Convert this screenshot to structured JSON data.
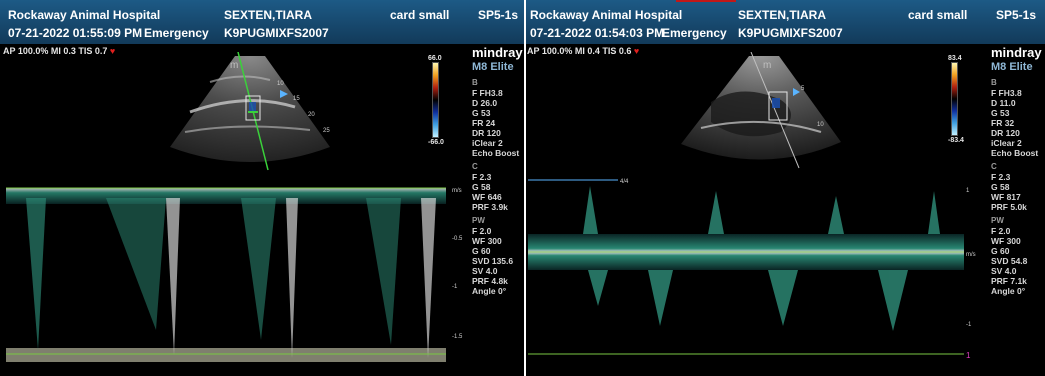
{
  "left": {
    "clinic": "Rockaway Animal Hospital",
    "patient": "SEXTEN,TIARA",
    "preset": "card small",
    "probe": "SP5-1s",
    "datetime": "07-21-2022 01:55:09 PM",
    "mode": "Emergency",
    "patient_id": "K9PUGMIXFS2007",
    "status_line": "AP 100.0%  MI 0.3  TIS 0.7",
    "brand": "mindray",
    "model": "M8 Elite",
    "color_scale_top": "66.0",
    "color_scale_bottom": "-66.0",
    "params": {
      "b_title": "B",
      "b_items": [
        "F FH3.8",
        "D 26.0",
        "G 53",
        "FR 24",
        "DR 120",
        "iClear 2",
        "Echo Boost"
      ],
      "c_title": "C",
      "c_items": [
        "F 2.3",
        "G 58",
        "WF 646",
        "PRF 3.9k"
      ],
      "pw_title": "PW",
      "pw_items": [
        "F 2.0",
        "WF 300",
        "G 60",
        "SVD 135.6",
        "SV 4.0",
        "PRF 4.8k",
        "Angle 0°"
      ]
    },
    "depth_marks": [
      "10",
      "15",
      "20",
      "25"
    ],
    "probe_marker": "m",
    "doppler_unit": "m/s",
    "doppler_ticks": [
      "-0.5",
      "-1",
      "-1.5"
    ]
  },
  "right": {
    "clinic": "Rockaway Animal Hospital",
    "patient": "SEXTEN,TIARA",
    "preset": "card small",
    "probe": "SP5-1s",
    "datetime": "07-21-2022 01:54:03 PM",
    "mode": "Emergency",
    "patient_id": "K9PUGMIXFS2007",
    "status_line": "AP 100.0%  MI 0.4  TIS 0.6",
    "brand": "mindray",
    "model": "M8 Elite",
    "color_scale_top": "83.4",
    "color_scale_bottom": "-83.4",
    "params": {
      "b_title": "B",
      "b_items": [
        "F FH3.8",
        "D 11.0",
        "G 53",
        "FR 32",
        "DR 120",
        "iClear 2",
        "Echo Boost"
      ],
      "c_title": "C",
      "c_items": [
        "F 2.3",
        "G 58",
        "WF 817",
        "PRF 5.0k"
      ],
      "pw_title": "PW",
      "pw_items": [
        "F 2.0",
        "WF 300",
        "G 60",
        "SVD 54.8",
        "SV 4.0",
        "PRF 7.1k",
        "Angle 0°"
      ]
    },
    "depth_marks": [
      "5",
      "10"
    ],
    "probe_marker": "m",
    "speed_label": "4/4",
    "doppler_unit": "m/s",
    "doppler_ticks": [
      "1",
      "-1",
      "1"
    ]
  },
  "colors": {
    "header_bg": "#1d5a86",
    "baseline": "#7ac943",
    "accent_blue": "#5ab4ff",
    "heart": "#e0201e",
    "marker": "#e040c0"
  }
}
